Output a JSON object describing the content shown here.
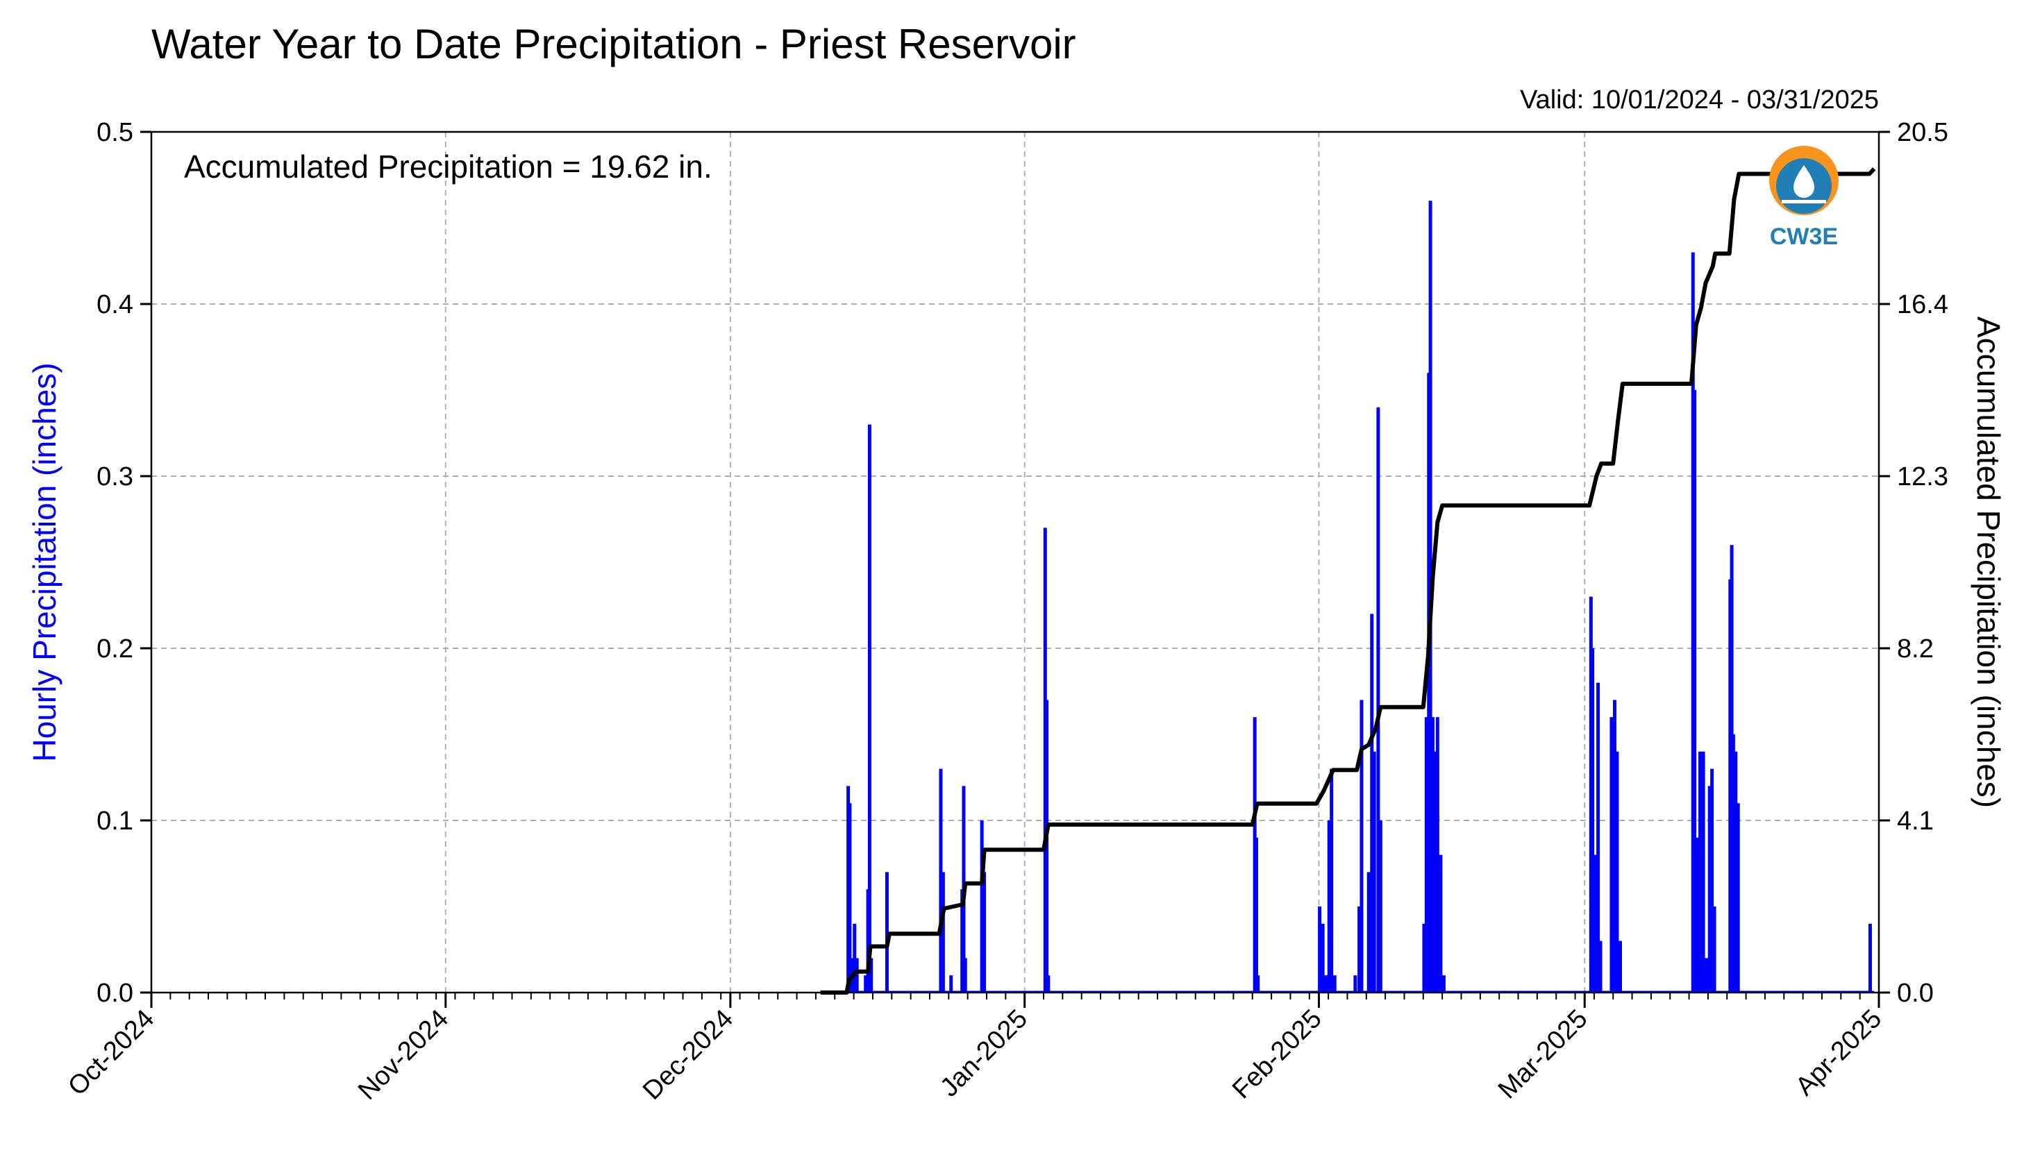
{
  "chart_data": {
    "type": "bar",
    "title": "Water Year to Date Precipitation - Priest Reservoir",
    "subtitle": "Valid: 10/01/2024 - 03/31/2025",
    "annotation": "Accumulated Precipitation = 19.62 in.",
    "ylabel_left": "Hourly Precipitation (inches)",
    "ylabel_right": "Accumulated Precipitation (inches)",
    "xlim": [
      "2024-10-01",
      "2025-04-01"
    ],
    "ylim_left": [
      0,
      0.5
    ],
    "ylim_right": [
      0,
      20.5
    ],
    "grid": true,
    "colors": {
      "hourly": "#0000ff",
      "accumulated": "#000000",
      "ylabel_left": "#0000ff",
      "logo_orange": "#f7941d",
      "logo_blue": "#1f7fb6"
    },
    "x_ticks": [
      {
        "date": "2024-10-01",
        "label": "Oct-2024"
      },
      {
        "date": "2024-11-01",
        "label": "Nov-2024"
      },
      {
        "date": "2024-12-01",
        "label": "Dec-2024"
      },
      {
        "date": "2025-01-01",
        "label": "Jan-2025"
      },
      {
        "date": "2025-02-01",
        "label": "Feb-2025"
      },
      {
        "date": "2025-03-01",
        "label": "Mar-2025"
      },
      {
        "date": "2025-04-01",
        "label": "Apr-2025"
      }
    ],
    "y_left_ticks": [
      {
        "value": 0.0,
        "label": "0.0"
      },
      {
        "value": 0.1,
        "label": "0.1"
      },
      {
        "value": 0.2,
        "label": "0.2"
      },
      {
        "value": 0.3,
        "label": "0.3"
      },
      {
        "value": 0.4,
        "label": "0.4"
      },
      {
        "value": 0.5,
        "label": "0.5"
      }
    ],
    "y_right_ticks": [
      {
        "value": 0.0,
        "label": "0.0"
      },
      {
        "value": 4.1,
        "label": "4.1"
      },
      {
        "value": 8.2,
        "label": "8.2"
      },
      {
        "value": 12.3,
        "label": "12.3"
      },
      {
        "value": 16.4,
        "label": "16.4"
      },
      {
        "value": 20.5,
        "label": "20.5"
      }
    ],
    "series": [
      {
        "name": "Hourly Precipitation",
        "kind": "bar",
        "points": [
          {
            "x": "2024-12-13 10:00",
            "y": 0.12
          },
          {
            "x": "2024-12-13 14:00",
            "y": 0.11
          },
          {
            "x": "2024-12-13 18:00",
            "y": 0.02
          },
          {
            "x": "2024-12-14 02:00",
            "y": 0.04
          },
          {
            "x": "2024-12-14 08:00",
            "y": 0.02
          },
          {
            "x": "2024-12-15 06:00",
            "y": 0.01
          },
          {
            "x": "2024-12-15 12:00",
            "y": 0.06
          },
          {
            "x": "2024-12-15 16:00",
            "y": 0.33
          },
          {
            "x": "2024-12-15 20:00",
            "y": 0.02
          },
          {
            "x": "2024-12-17 12:00",
            "y": 0.07
          },
          {
            "x": "2024-12-23 04:00",
            "y": 0.13
          },
          {
            "x": "2024-12-23 10:00",
            "y": 0.07
          },
          {
            "x": "2024-12-24 06:00",
            "y": 0.01
          },
          {
            "x": "2024-12-25 10:00",
            "y": 0.06
          },
          {
            "x": "2024-12-25 14:00",
            "y": 0.12
          },
          {
            "x": "2024-12-25 18:00",
            "y": 0.02
          },
          {
            "x": "2024-12-27 12:00",
            "y": 0.1
          },
          {
            "x": "2024-12-27 18:00",
            "y": 0.07
          },
          {
            "x": "2025-01-03 04:00",
            "y": 0.27
          },
          {
            "x": "2025-01-03 08:00",
            "y": 0.17
          },
          {
            "x": "2025-01-03 12:00",
            "y": 0.01
          },
          {
            "x": "2025-01-25 06:00",
            "y": 0.16
          },
          {
            "x": "2025-01-25 10:00",
            "y": 0.09
          },
          {
            "x": "2025-01-25 14:00",
            "y": 0.01
          },
          {
            "x": "2025-02-01 02:00",
            "y": 0.05
          },
          {
            "x": "2025-02-01 10:00",
            "y": 0.04
          },
          {
            "x": "2025-02-01 18:00",
            "y": 0.01
          },
          {
            "x": "2025-02-02 02:00",
            "y": 0.1
          },
          {
            "x": "2025-02-02 08:00",
            "y": 0.13
          },
          {
            "x": "2025-02-02 16:00",
            "y": 0.01
          },
          {
            "x": "2025-02-04 20:00",
            "y": 0.01
          },
          {
            "x": "2025-02-05 06:00",
            "y": 0.05
          },
          {
            "x": "2025-02-05 12:00",
            "y": 0.17
          },
          {
            "x": "2025-02-06 06:00",
            "y": 0.07
          },
          {
            "x": "2025-02-06 14:00",
            "y": 0.22
          },
          {
            "x": "2025-02-06 20:00",
            "y": 0.14
          },
          {
            "x": "2025-02-07 06:00",
            "y": 0.34
          },
          {
            "x": "2025-02-07 12:00",
            "y": 0.1
          },
          {
            "x": "2025-02-12 02:00",
            "y": 0.04
          },
          {
            "x": "2025-02-12 08:00",
            "y": 0.16
          },
          {
            "x": "2025-02-12 14:00",
            "y": 0.36
          },
          {
            "x": "2025-02-12 18:00",
            "y": 0.46
          },
          {
            "x": "2025-02-13 00:00",
            "y": 0.16
          },
          {
            "x": "2025-02-13 06:00",
            "y": 0.14
          },
          {
            "x": "2025-02-13 12:00",
            "y": 0.16
          },
          {
            "x": "2025-02-13 20:00",
            "y": 0.08
          },
          {
            "x": "2025-02-14 04:00",
            "y": 0.01
          },
          {
            "x": "2025-03-01 16:00",
            "y": 0.23
          },
          {
            "x": "2025-03-01 20:00",
            "y": 0.2
          },
          {
            "x": "2025-03-02 04:00",
            "y": 0.08
          },
          {
            "x": "2025-03-02 10:00",
            "y": 0.18
          },
          {
            "x": "2025-03-02 16:00",
            "y": 0.03
          },
          {
            "x": "2025-03-03 20:00",
            "y": 0.16
          },
          {
            "x": "2025-03-04 04:00",
            "y": 0.17
          },
          {
            "x": "2025-03-04 10:00",
            "y": 0.14
          },
          {
            "x": "2025-03-04 18:00",
            "y": 0.03
          },
          {
            "x": "2025-03-12 10:00",
            "y": 0.43
          },
          {
            "x": "2025-03-12 14:00",
            "y": 0.35
          },
          {
            "x": "2025-03-12 20:00",
            "y": 0.09
          },
          {
            "x": "2025-03-13 04:00",
            "y": 0.14
          },
          {
            "x": "2025-03-13 12:00",
            "y": 0.14
          },
          {
            "x": "2025-03-13 20:00",
            "y": 0.02
          },
          {
            "x": "2025-03-14 04:00",
            "y": 0.12
          },
          {
            "x": "2025-03-14 10:00",
            "y": 0.13
          },
          {
            "x": "2025-03-14 16:00",
            "y": 0.05
          },
          {
            "x": "2025-03-16 08:00",
            "y": 0.24
          },
          {
            "x": "2025-03-16 12:00",
            "y": 0.26
          },
          {
            "x": "2025-03-16 16:00",
            "y": 0.15
          },
          {
            "x": "2025-03-16 22:00",
            "y": 0.14
          },
          {
            "x": "2025-03-17 04:00",
            "y": 0.11
          },
          {
            "x": "2025-03-31 02:00",
            "y": 0.04
          }
        ]
      },
      {
        "name": "Accumulated Precipitation",
        "kind": "step-line",
        "points": [
          {
            "x": "2024-12-10 12:00",
            "y": 0.0
          },
          {
            "x": "2024-12-13 06:00",
            "y": 0.0
          },
          {
            "x": "2024-12-13 12:00",
            "y": 0.3
          },
          {
            "x": "2024-12-14 06:00",
            "y": 0.5
          },
          {
            "x": "2024-12-15 12:00",
            "y": 0.5
          },
          {
            "x": "2024-12-15 18:00",
            "y": 1.1
          },
          {
            "x": "2024-12-17 12:00",
            "y": 1.1
          },
          {
            "x": "2024-12-17 18:00",
            "y": 1.4
          },
          {
            "x": "2024-12-23 00:00",
            "y": 1.4
          },
          {
            "x": "2024-12-23 12:00",
            "y": 2.0
          },
          {
            "x": "2024-12-25 12:00",
            "y": 2.1
          },
          {
            "x": "2024-12-25 18:00",
            "y": 2.6
          },
          {
            "x": "2024-12-27 12:00",
            "y": 2.6
          },
          {
            "x": "2024-12-27 18:00",
            "y": 3.4
          },
          {
            "x": "2025-01-03 00:00",
            "y": 3.4
          },
          {
            "x": "2025-01-03 12:00",
            "y": 4.0
          },
          {
            "x": "2025-01-25 00:00",
            "y": 4.0
          },
          {
            "x": "2025-01-25 12:00",
            "y": 4.5
          },
          {
            "x": "2025-01-31 18:00",
            "y": 4.5
          },
          {
            "x": "2025-02-01 12:00",
            "y": 4.8
          },
          {
            "x": "2025-02-02 12:00",
            "y": 5.3
          },
          {
            "x": "2025-02-05 00:00",
            "y": 5.3
          },
          {
            "x": "2025-02-05 12:00",
            "y": 5.8
          },
          {
            "x": "2025-02-06 06:00",
            "y": 5.9
          },
          {
            "x": "2025-02-07 00:00",
            "y": 6.3
          },
          {
            "x": "2025-02-07 12:00",
            "y": 6.8
          },
          {
            "x": "2025-02-12 00:00",
            "y": 6.8
          },
          {
            "x": "2025-02-12 12:00",
            "y": 8.0
          },
          {
            "x": "2025-02-13 00:00",
            "y": 9.9
          },
          {
            "x": "2025-02-13 12:00",
            "y": 11.2
          },
          {
            "x": "2025-02-14 00:00",
            "y": 11.6
          },
          {
            "x": "2025-03-01 12:00",
            "y": 11.6
          },
          {
            "x": "2025-03-02 06:00",
            "y": 12.3
          },
          {
            "x": "2025-03-02 18:00",
            "y": 12.6
          },
          {
            "x": "2025-03-04 00:00",
            "y": 12.6
          },
          {
            "x": "2025-03-04 12:00",
            "y": 13.6
          },
          {
            "x": "2025-03-05 00:00",
            "y": 14.5
          },
          {
            "x": "2025-03-12 06:00",
            "y": 14.5
          },
          {
            "x": "2025-03-12 18:00",
            "y": 15.9
          },
          {
            "x": "2025-03-13 06:00",
            "y": 16.3
          },
          {
            "x": "2025-03-13 18:00",
            "y": 16.9
          },
          {
            "x": "2025-03-14 12:00",
            "y": 17.3
          },
          {
            "x": "2025-03-14 18:00",
            "y": 17.6
          },
          {
            "x": "2025-03-16 06:00",
            "y": 17.6
          },
          {
            "x": "2025-03-16 18:00",
            "y": 18.9
          },
          {
            "x": "2025-03-17 06:00",
            "y": 19.5
          },
          {
            "x": "2025-03-31 00:00",
            "y": 19.5
          },
          {
            "x": "2025-03-31 12:00",
            "y": 19.62
          }
        ]
      }
    ]
  },
  "logo": {
    "text": "CW3E"
  }
}
